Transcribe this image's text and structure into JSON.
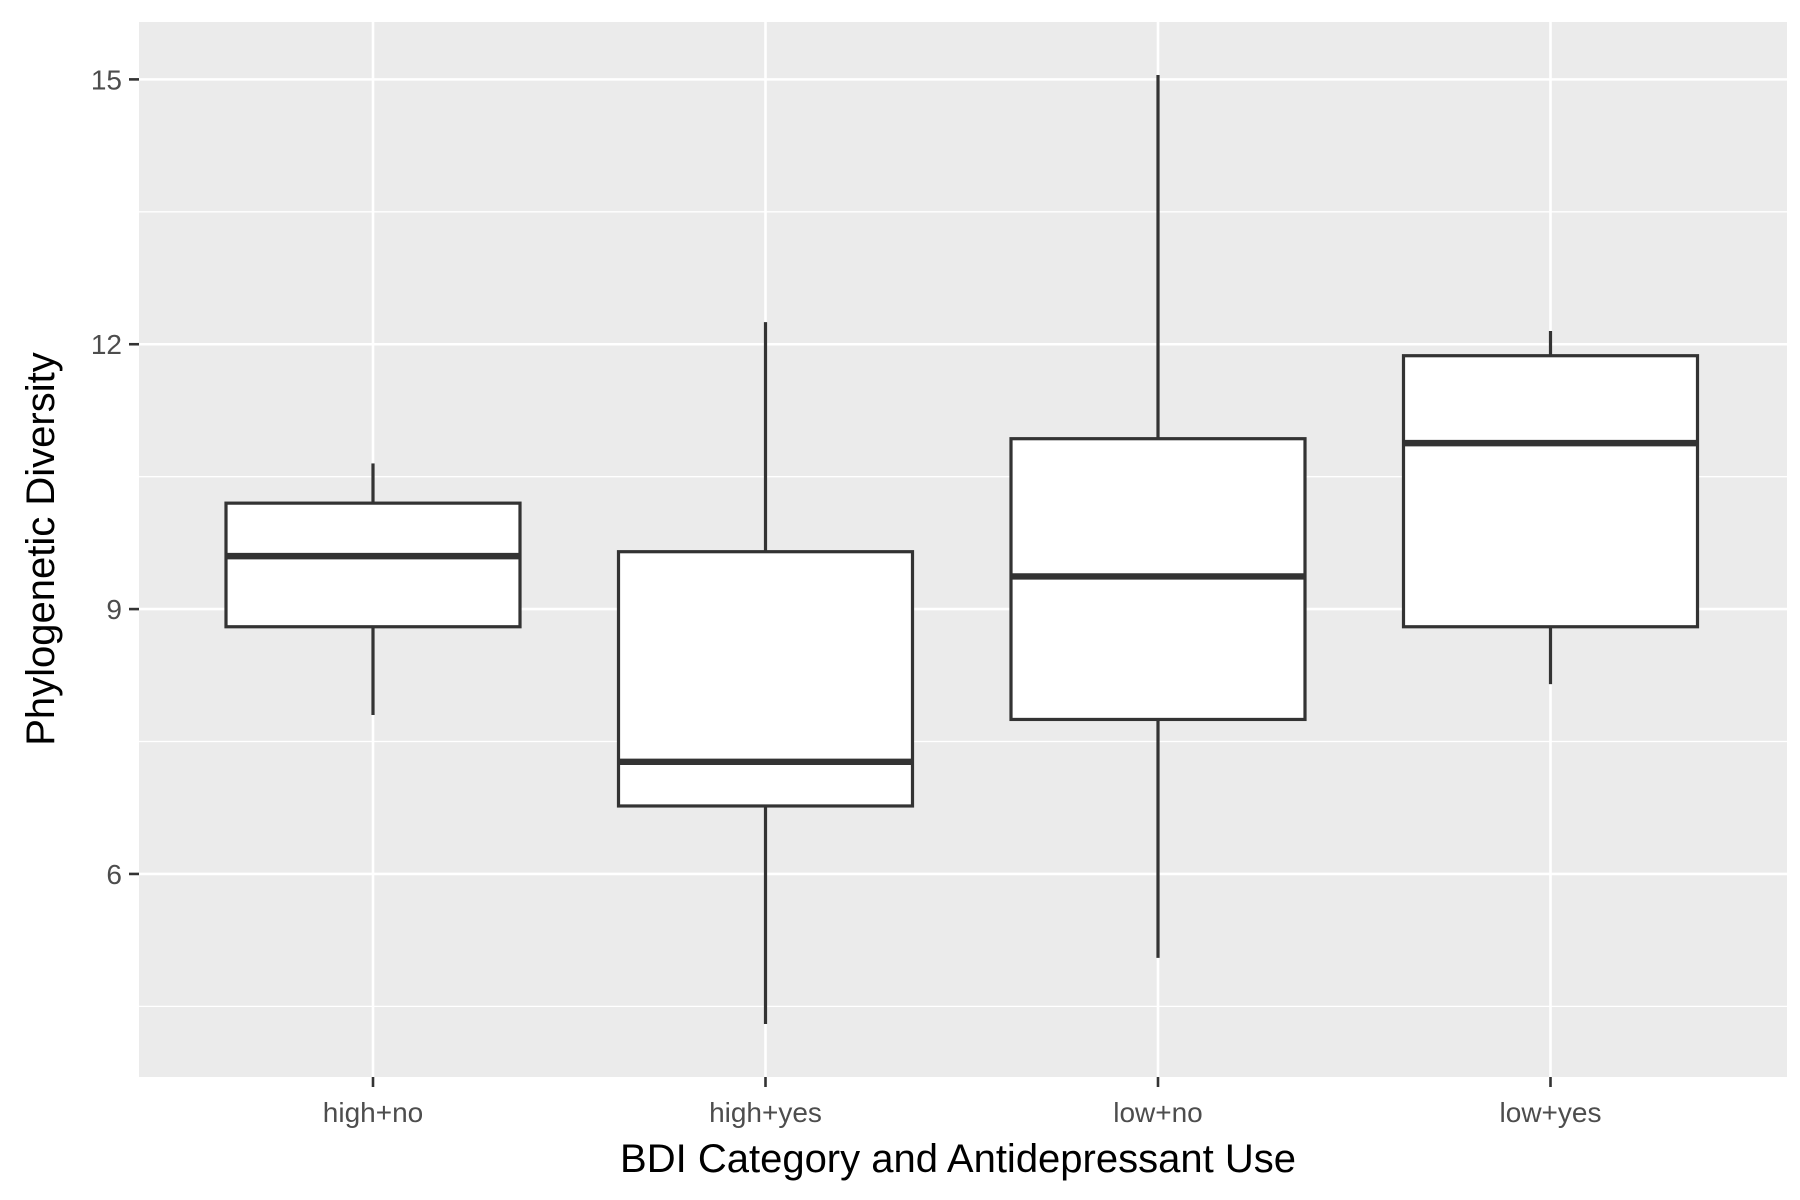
{
  "chart_data": {
    "type": "boxplot",
    "title": "",
    "xlabel": "BDI Category and Antidepressant Use",
    "ylabel": "Phylogenetic Diversity",
    "categories": [
      "high+no",
      "high+yes",
      "low+no",
      "low+yes"
    ],
    "boxes": [
      {
        "category": "high+no",
        "whisker_low": 7.8,
        "q1": 8.8,
        "median": 9.6,
        "q3": 10.2,
        "whisker_high": 10.65
      },
      {
        "category": "high+yes",
        "whisker_low": 4.3,
        "q1": 6.77,
        "median": 7.27,
        "q3": 9.65,
        "whisker_high": 12.25
      },
      {
        "category": "low+no",
        "whisker_low": 5.05,
        "q1": 7.75,
        "median": 9.37,
        "q3": 10.93,
        "whisker_high": 15.05
      },
      {
        "category": "low+yes",
        "whisker_low": 8.15,
        "q1": 8.8,
        "median": 10.88,
        "q3": 11.87,
        "whisker_high": 12.15
      }
    ],
    "y_ticks": [
      6,
      9,
      12,
      15
    ],
    "y_tick_labels": [
      "6",
      "9",
      "12",
      "15"
    ],
    "y_minor_ticks": [
      4.5,
      7.5,
      10.5,
      13.5
    ],
    "ylim": [
      3.7,
      15.65
    ],
    "grid": true,
    "legend": "none",
    "colors": {
      "panel_background": "#ebebeb",
      "grid": "#ffffff",
      "box_fill": "#ffffff",
      "box_stroke": "#333333",
      "tick_label": "#4d4d4d",
      "axis_title": "#000000"
    }
  }
}
